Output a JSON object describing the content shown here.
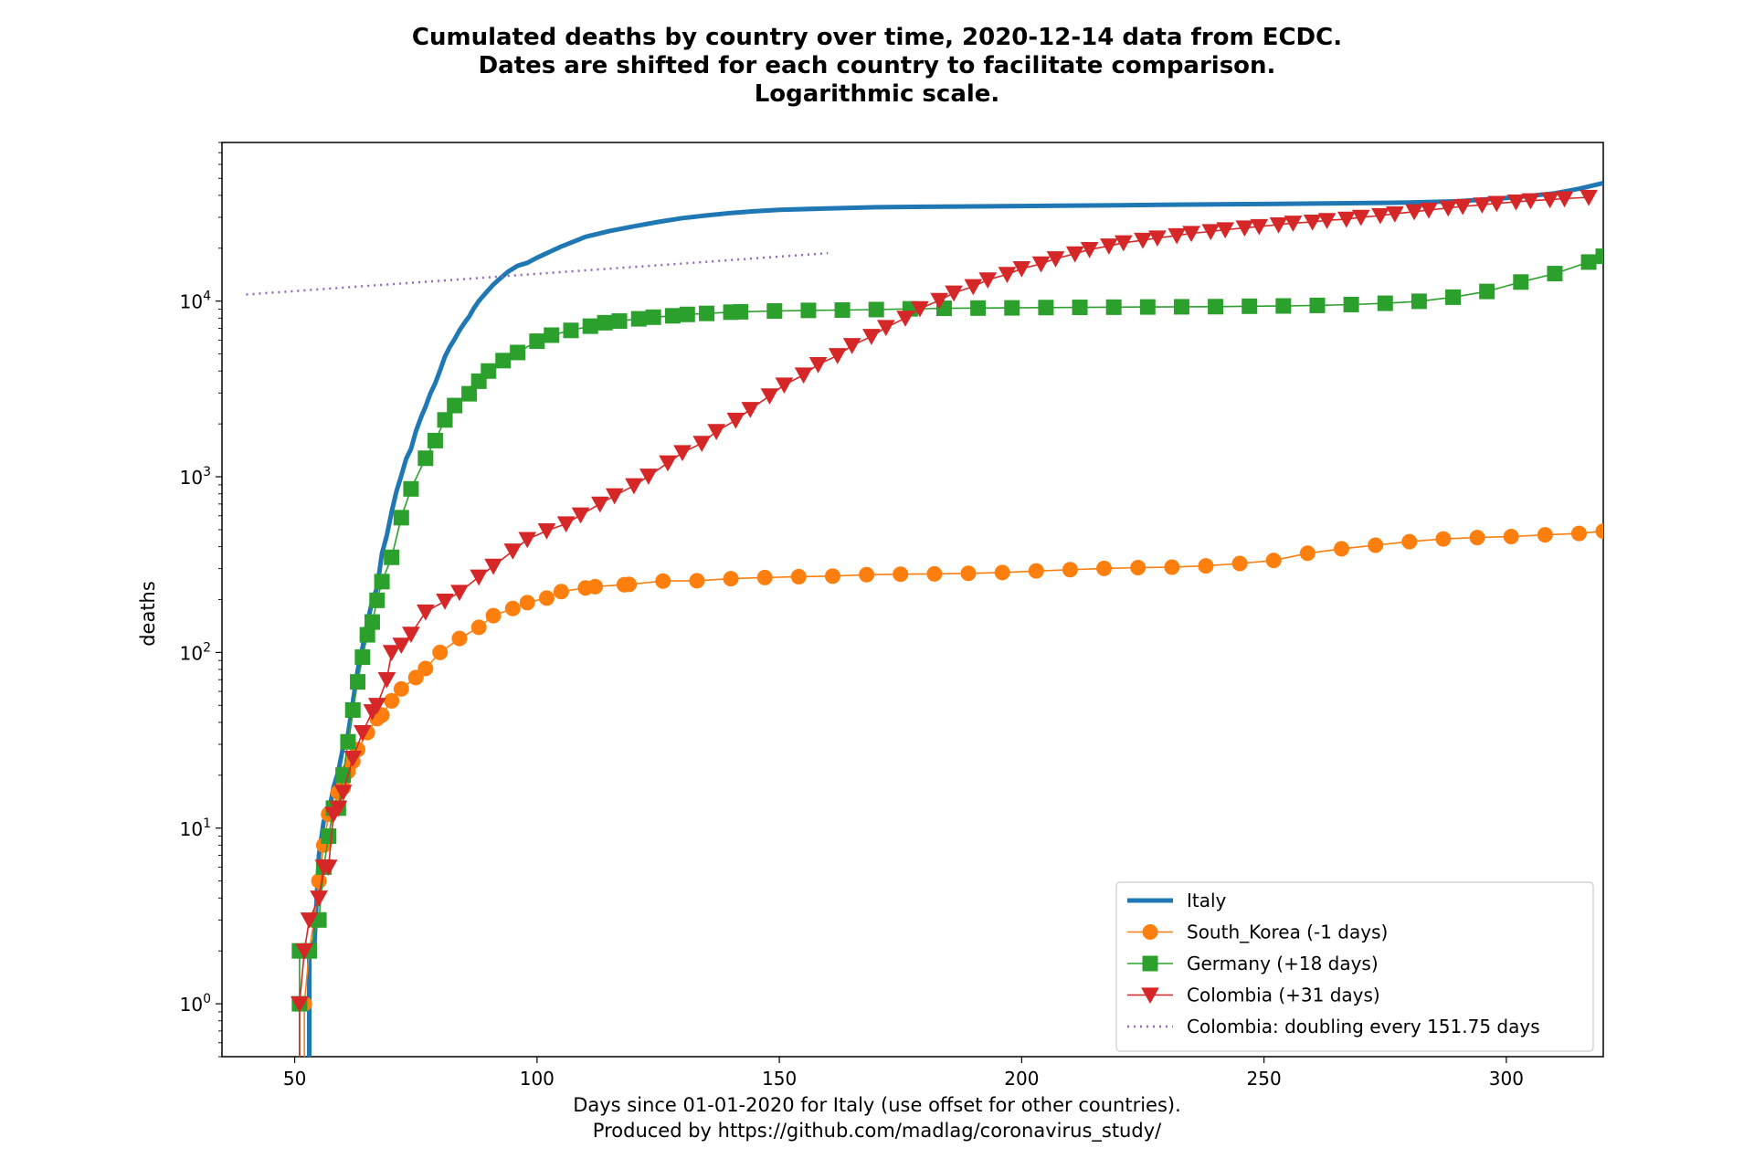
{
  "chart_data": {
    "type": "line",
    "title_lines": [
      "Cumulated deaths by country over time, 2020-12-14 data from ECDC.",
      "Dates are shifted for each country to facilitate comparison.",
      "Logarithmic scale."
    ],
    "xlabel_lines": [
      "Days since 01-01-2020 for Italy (use offset for other countries).",
      "Produced by https://github.com/madlag/coronavirus_study/"
    ],
    "ylabel": "deaths",
    "yscale": "log",
    "xlim": [
      35,
      320
    ],
    "ylim": [
      0.5,
      80000
    ],
    "x_ticks": [
      50,
      100,
      150,
      200,
      250,
      300
    ],
    "x_tick_labels": [
      "50",
      "100",
      "150",
      "200",
      "250",
      "300"
    ],
    "y_ticks": [
      1,
      10,
      100,
      1000,
      10000
    ],
    "y_tick_labels": [
      {
        "base": "10",
        "exp": "0"
      },
      {
        "base": "10",
        "exp": "1"
      },
      {
        "base": "10",
        "exp": "2"
      },
      {
        "base": "10",
        "exp": "3"
      },
      {
        "base": "10",
        "exp": "4"
      }
    ],
    "legend_position": "bottom-right",
    "series": [
      {
        "name": "Italy",
        "color": "#1f77b4",
        "style": "thick",
        "marker": "none",
        "points": [
          [
            53,
            2
          ],
          [
            54,
            2
          ],
          [
            55,
            7
          ],
          [
            56,
            11
          ],
          [
            57,
            12
          ],
          [
            58,
            17
          ],
          [
            59,
            21
          ],
          [
            60,
            29
          ],
          [
            61,
            34
          ],
          [
            62,
            52
          ],
          [
            63,
            79
          ],
          [
            64,
            107
          ],
          [
            65,
            148
          ],
          [
            66,
            197
          ],
          [
            67,
            233
          ],
          [
            68,
            366
          ],
          [
            69,
            463
          ],
          [
            70,
            631
          ],
          [
            71,
            827
          ],
          [
            72,
            1016
          ],
          [
            73,
            1266
          ],
          [
            74,
            1441
          ],
          [
            75,
            1809
          ],
          [
            76,
            2158
          ],
          [
            77,
            2503
          ],
          [
            78,
            2978
          ],
          [
            79,
            3405
          ],
          [
            80,
            4032
          ],
          [
            81,
            4825
          ],
          [
            82,
            5476
          ],
          [
            83,
            6077
          ],
          [
            84,
            6820
          ],
          [
            85,
            7503
          ],
          [
            86,
            8165
          ],
          [
            87,
            9134
          ],
          [
            88,
            10023
          ],
          [
            89,
            10779
          ],
          [
            90,
            11591
          ],
          [
            91,
            12428
          ],
          [
            92,
            13155
          ],
          [
            93,
            13915
          ],
          [
            94,
            14681
          ],
          [
            96,
            15887
          ],
          [
            98,
            16523
          ],
          [
            100,
            17669
          ],
          [
            105,
            20465
          ],
          [
            110,
            23227
          ],
          [
            115,
            25085
          ],
          [
            120,
            26644
          ],
          [
            125,
            28236
          ],
          [
            130,
            29684
          ],
          [
            135,
            30739
          ],
          [
            140,
            31763
          ],
          [
            145,
            32486
          ],
          [
            150,
            33072
          ],
          [
            160,
            33689
          ],
          [
            170,
            34223
          ],
          [
            180,
            34448
          ],
          [
            200,
            34767
          ],
          [
            220,
            35141
          ],
          [
            240,
            35578
          ],
          [
            260,
            35918
          ],
          [
            280,
            36372
          ],
          [
            290,
            37000
          ],
          [
            300,
            38618
          ],
          [
            305,
            39764
          ],
          [
            310,
            41063
          ],
          [
            315,
            43589
          ],
          [
            320,
            47000
          ]
        ]
      },
      {
        "name": "South_Korea (-1 days)",
        "color": "#ff7f0e",
        "style": "thin",
        "marker": "circle",
        "points": [
          [
            52,
            1
          ],
          [
            53,
            2
          ],
          [
            54,
            3
          ],
          [
            55,
            5
          ],
          [
            56,
            8
          ],
          [
            57,
            12
          ],
          [
            58,
            13
          ],
          [
            59,
            16
          ],
          [
            60,
            17
          ],
          [
            61,
            21
          ],
          [
            62,
            24
          ],
          [
            63,
            28
          ],
          [
            65,
            35
          ],
          [
            67,
            42
          ],
          [
            68,
            44
          ],
          [
            70,
            53
          ],
          [
            72,
            62
          ],
          [
            75,
            72
          ],
          [
            77,
            81
          ],
          [
            80,
            100
          ],
          [
            84,
            120
          ],
          [
            88,
            139
          ],
          [
            91,
            162
          ],
          [
            95,
            178
          ],
          [
            98,
            192
          ],
          [
            102,
            204
          ],
          [
            105,
            222
          ],
          [
            110,
            233
          ],
          [
            112,
            237
          ],
          [
            118,
            243
          ],
          [
            119,
            244
          ],
          [
            126,
            255
          ],
          [
            133,
            256
          ],
          [
            140,
            263
          ],
          [
            147,
            267
          ],
          [
            154,
            270
          ],
          [
            161,
            272
          ],
          [
            168,
            277
          ],
          [
            175,
            279
          ],
          [
            182,
            280
          ],
          [
            189,
            282
          ],
          [
            196,
            285
          ],
          [
            203,
            291
          ],
          [
            210,
            296
          ],
          [
            217,
            301
          ],
          [
            224,
            304
          ],
          [
            231,
            306
          ],
          [
            238,
            311
          ],
          [
            245,
            321
          ],
          [
            252,
            334
          ],
          [
            259,
            367
          ],
          [
            266,
            389
          ],
          [
            273,
            408
          ],
          [
            280,
            427
          ],
          [
            287,
            443
          ],
          [
            294,
            451
          ],
          [
            301,
            457
          ],
          [
            308,
            467
          ],
          [
            315,
            476
          ],
          [
            320,
            490
          ]
        ]
      },
      {
        "name": "Germany (+18 days)",
        "color": "#2ca02c",
        "style": "thin",
        "marker": "square",
        "points": [
          [
            51,
            1
          ],
          [
            51,
            2
          ],
          [
            53,
            2
          ],
          [
            55,
            3
          ],
          [
            56,
            6
          ],
          [
            57,
            9
          ],
          [
            58,
            13
          ],
          [
            59,
            13
          ],
          [
            60,
            20
          ],
          [
            61,
            31
          ],
          [
            62,
            47
          ],
          [
            63,
            68
          ],
          [
            64,
            94
          ],
          [
            65,
            126
          ],
          [
            66,
            149
          ],
          [
            67,
            198
          ],
          [
            68,
            253
          ],
          [
            70,
            348
          ],
          [
            72,
            585
          ],
          [
            74,
            853
          ],
          [
            77,
            1275
          ],
          [
            79,
            1607
          ],
          [
            81,
            2107
          ],
          [
            83,
            2544
          ],
          [
            86,
            2969
          ],
          [
            88,
            3500
          ],
          [
            90,
            4000
          ],
          [
            93,
            4586
          ],
          [
            96,
            5100
          ],
          [
            100,
            5913
          ],
          [
            103,
            6400
          ],
          [
            107,
            6812
          ],
          [
            111,
            7200
          ],
          [
            114,
            7533
          ],
          [
            117,
            7700
          ],
          [
            121,
            7929
          ],
          [
            124,
            8100
          ],
          [
            128,
            8247
          ],
          [
            131,
            8400
          ],
          [
            135,
            8511
          ],
          [
            140,
            8650
          ],
          [
            142,
            8693
          ],
          [
            149,
            8785
          ],
          [
            156,
            8855
          ],
          [
            163,
            8896
          ],
          [
            170,
            8950
          ],
          [
            177,
            9036
          ],
          [
            184,
            9100
          ],
          [
            191,
            9128
          ],
          [
            198,
            9153
          ],
          [
            205,
            9190
          ],
          [
            212,
            9213
          ],
          [
            219,
            9236
          ],
          [
            226,
            9260
          ],
          [
            233,
            9283
          ],
          [
            240,
            9300
          ],
          [
            247,
            9352
          ],
          [
            254,
            9386
          ],
          [
            261,
            9450
          ],
          [
            268,
            9560
          ],
          [
            275,
            9722
          ],
          [
            282,
            9978
          ],
          [
            289,
            10530
          ],
          [
            296,
            11350
          ],
          [
            303,
            12840
          ],
          [
            310,
            14345
          ],
          [
            317,
            16684
          ],
          [
            320,
            18000
          ]
        ]
      },
      {
        "name": "Colombia (+31 days)",
        "color": "#d62728",
        "style": "thin",
        "marker": "triangle",
        "points": [
          [
            51,
            1
          ],
          [
            52,
            2
          ],
          [
            53,
            3
          ],
          [
            55,
            4
          ],
          [
            56,
            6
          ],
          [
            57,
            6
          ],
          [
            58,
            12
          ],
          [
            59,
            13
          ],
          [
            60,
            16
          ],
          [
            62,
            25
          ],
          [
            64,
            35
          ],
          [
            66,
            46
          ],
          [
            67,
            50
          ],
          [
            69,
            70
          ],
          [
            70,
            100
          ],
          [
            72,
            110
          ],
          [
            74,
            127
          ],
          [
            77,
            170
          ],
          [
            81,
            196
          ],
          [
            84,
            220
          ],
          [
            88,
            269
          ],
          [
            91,
            310
          ],
          [
            95,
            378
          ],
          [
            98,
            440
          ],
          [
            102,
            493
          ],
          [
            106,
            540
          ],
          [
            109,
            607
          ],
          [
            113,
            700
          ],
          [
            116,
            780
          ],
          [
            120,
            890
          ],
          [
            123,
            1009
          ],
          [
            127,
            1200
          ],
          [
            130,
            1373
          ],
          [
            134,
            1550
          ],
          [
            137,
            1811
          ],
          [
            141,
            2100
          ],
          [
            144,
            2420
          ],
          [
            148,
            2890
          ],
          [
            151,
            3334
          ],
          [
            155,
            3800
          ],
          [
            158,
            4357
          ],
          [
            162,
            4900
          ],
          [
            165,
            5590
          ],
          [
            169,
            6300
          ],
          [
            172,
            7080
          ],
          [
            176,
            8000
          ],
          [
            179,
            9060
          ],
          [
            183,
            10100
          ],
          [
            186,
            11130
          ],
          [
            190,
            12100
          ],
          [
            193,
            13220
          ],
          [
            197,
            14200
          ],
          [
            200,
            15300
          ],
          [
            204,
            16300
          ],
          [
            207,
            17440
          ],
          [
            211,
            18600
          ],
          [
            214,
            19670
          ],
          [
            218,
            20600
          ],
          [
            221,
            21500
          ],
          [
            225,
            22200
          ],
          [
            228,
            22900
          ],
          [
            232,
            23600
          ],
          [
            235,
            24300
          ],
          [
            239,
            24900
          ],
          [
            242,
            25500
          ],
          [
            246,
            26100
          ],
          [
            249,
            26600
          ],
          [
            253,
            27200
          ],
          [
            256,
            27800
          ],
          [
            260,
            28200
          ],
          [
            263,
            28800
          ],
          [
            267,
            29300
          ],
          [
            270,
            30000
          ],
          [
            274,
            30700
          ],
          [
            277,
            31400
          ],
          [
            281,
            32300
          ],
          [
            284,
            33000
          ],
          [
            288,
            33900
          ],
          [
            291,
            34600
          ],
          [
            295,
            35300
          ],
          [
            298,
            36000
          ],
          [
            302,
            36700
          ],
          [
            305,
            37300
          ],
          [
            309,
            37800
          ],
          [
            312,
            38300
          ],
          [
            317,
            39000
          ]
        ]
      },
      {
        "name": "Colombia: doubling every 151.75 days",
        "color": "#9467bd",
        "style": "dotted",
        "marker": "none",
        "points": [
          [
            40,
            10900
          ],
          [
            160,
            18750
          ]
        ]
      }
    ]
  }
}
